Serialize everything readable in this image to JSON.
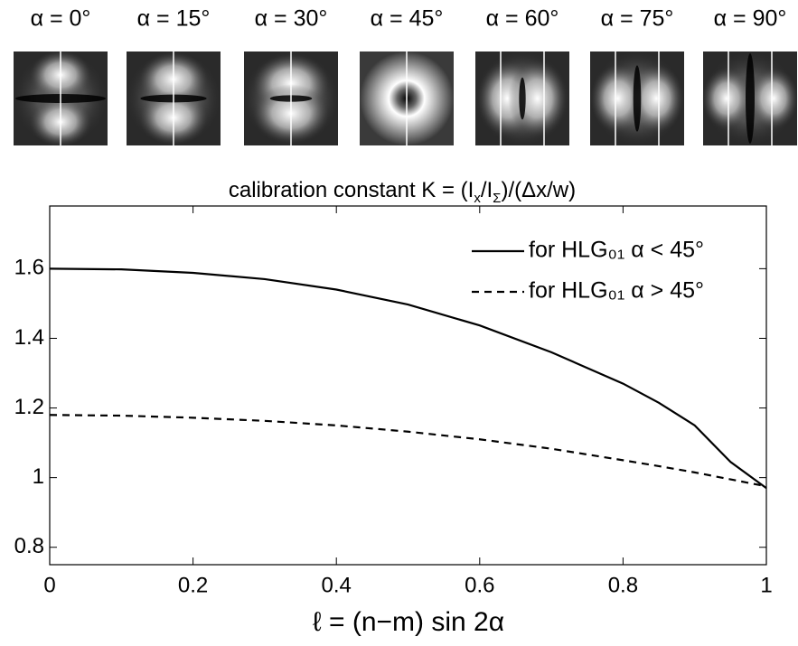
{
  "panels": [
    "α = 0°",
    "α = 15°",
    "α = 30°",
    "α = 45°",
    "α = 60°",
    "α = 75°",
    "α = 90°"
  ],
  "chart_data": {
    "type": "line",
    "title": [
      {
        "text": "calibration constant K = (I"
      },
      {
        "text": "x",
        "sub": true
      },
      {
        "text": "/I"
      },
      {
        "text": "Σ",
        "sub": true
      },
      {
        "text": ")/(Δx/w)"
      }
    ],
    "x_label": "ℓ = (n−m) sin 2α",
    "x": [
      0,
      0.1,
      0.2,
      0.3,
      0.4,
      0.5,
      0.6,
      0.7,
      0.8,
      0.85,
      0.9,
      0.95,
      1
    ],
    "series": [
      {
        "name": "for HLG₀₁ α < 45°",
        "color": "#000000",
        "dash": "solid",
        "values": [
          1.6,
          1.598,
          1.588,
          1.57,
          1.54,
          1.497,
          1.437,
          1.36,
          1.27,
          1.215,
          1.15,
          1.045,
          0.97
        ]
      },
      {
        "name": "for HLG₀₁ α > 45°",
        "color": "#000000",
        "dash": "dashed",
        "values": [
          1.18,
          1.178,
          1.172,
          1.163,
          1.15,
          1.132,
          1.11,
          1.083,
          1.05,
          1.033,
          1.015,
          0.995,
          0.975
        ]
      }
    ],
    "xlim": [
      0,
      1
    ],
    "xticks": [
      0,
      0.2,
      0.4,
      0.6,
      0.8,
      1
    ],
    "ylim": [
      0.75,
      1.78
    ],
    "yticks": [
      0.8,
      1,
      1.2,
      1.4,
      1.6
    ],
    "legend": "upper right"
  }
}
